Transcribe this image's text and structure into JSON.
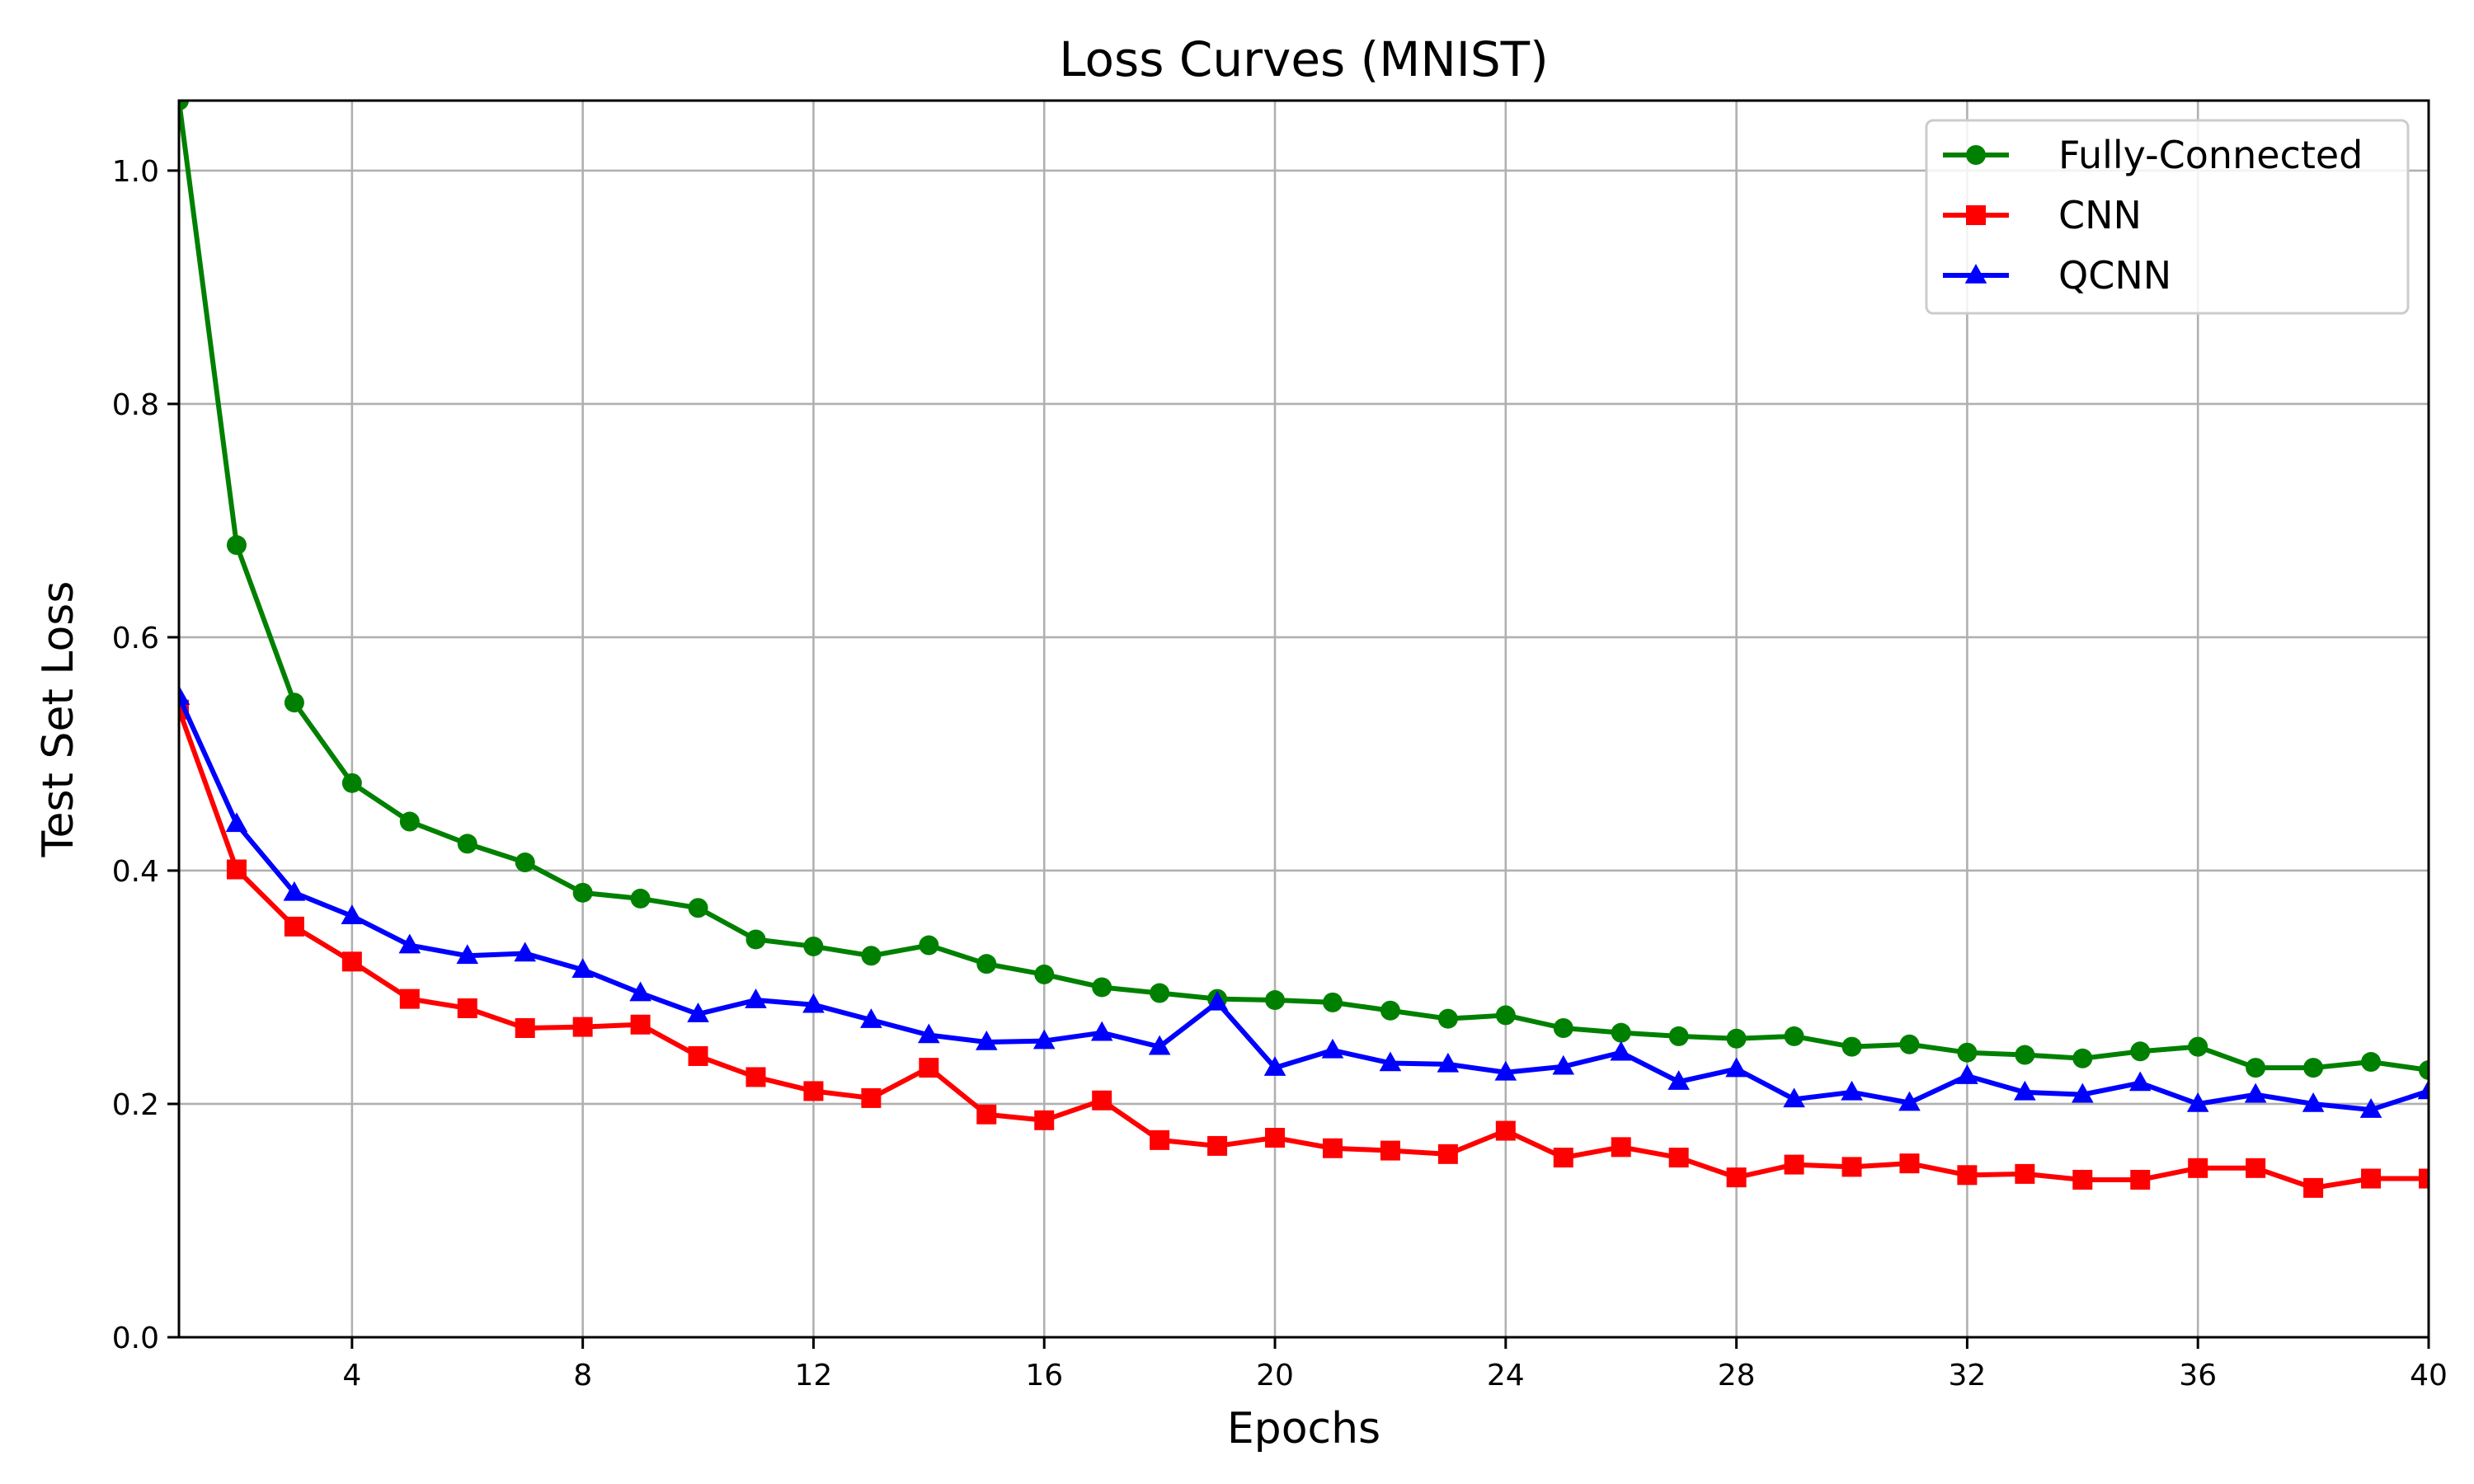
{
  "chart_data": {
    "type": "line",
    "title": "Loss Curves (MNIST)",
    "xlabel": "Epochs",
    "ylabel": "Test Set Loss",
    "xlim": [
      1,
      40
    ],
    "ylim": [
      0,
      1.06
    ],
    "xticks": [
      4,
      8,
      12,
      16,
      20,
      24,
      28,
      32,
      36,
      40
    ],
    "yticks": [
      0.0,
      0.2,
      0.4,
      0.6,
      0.8,
      1.0
    ],
    "ytick_labels": [
      "0.0",
      "0.2",
      "0.4",
      "0.6",
      "0.8",
      "1.0"
    ],
    "grid": true,
    "legend_position": "upper-right",
    "x": [
      1,
      2,
      3,
      4,
      5,
      6,
      7,
      8,
      9,
      10,
      11,
      12,
      13,
      14,
      15,
      16,
      17,
      18,
      19,
      20,
      21,
      22,
      23,
      24,
      25,
      26,
      27,
      28,
      29,
      30,
      31,
      32,
      33,
      34,
      35,
      36,
      37,
      38,
      39,
      40
    ],
    "series": [
      {
        "name": "Fully-Connected",
        "color": "#008000",
        "marker": "circle",
        "values": [
          1.06,
          0.679,
          0.544,
          0.475,
          0.442,
          0.423,
          0.407,
          0.381,
          0.376,
          0.368,
          0.341,
          0.335,
          0.327,
          0.336,
          0.32,
          0.311,
          0.3,
          0.295,
          0.29,
          0.289,
          0.287,
          0.28,
          0.273,
          0.276,
          0.265,
          0.261,
          0.258,
          0.256,
          0.258,
          0.249,
          0.251,
          0.244,
          0.242,
          0.239,
          0.245,
          0.249,
          0.231,
          0.231,
          0.236,
          0.229
        ]
      },
      {
        "name": "CNN",
        "color": "#ff0000",
        "marker": "square",
        "values": [
          0.538,
          0.401,
          0.352,
          0.322,
          0.29,
          0.282,
          0.265,
          0.266,
          0.268,
          0.241,
          0.223,
          0.211,
          0.205,
          0.231,
          0.191,
          0.186,
          0.203,
          0.169,
          0.164,
          0.171,
          0.162,
          0.16,
          0.157,
          0.177,
          0.154,
          0.163,
          0.154,
          0.137,
          0.148,
          0.146,
          0.149,
          0.139,
          0.14,
          0.135,
          0.135,
          0.145,
          0.145,
          0.128,
          0.136,
          0.136
        ]
      },
      {
        "name": "QCNN",
        "color": "#0000ff",
        "marker": "triangle",
        "values": [
          0.549,
          0.44,
          0.381,
          0.361,
          0.336,
          0.327,
          0.329,
          0.315,
          0.295,
          0.277,
          0.289,
          0.285,
          0.272,
          0.259,
          0.253,
          0.254,
          0.261,
          0.249,
          0.287,
          0.231,
          0.246,
          0.235,
          0.234,
          0.227,
          0.232,
          0.244,
          0.219,
          0.23,
          0.204,
          0.21,
          0.201,
          0.224,
          0.21,
          0.208,
          0.218,
          0.2,
          0.208,
          0.2,
          0.195,
          0.211
        ]
      }
    ]
  }
}
